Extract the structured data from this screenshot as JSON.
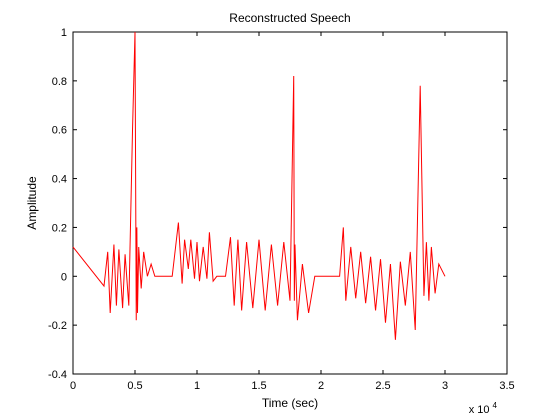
{
  "chart_data": {
    "type": "line",
    "title": "Reconstructed Speech",
    "xlabel": "Time (sec)",
    "ylabel": "Amplitude",
    "xlim": [
      0,
      35000
    ],
    "ylim": [
      -0.4,
      1
    ],
    "x_tick_values": [
      0,
      5000,
      10000,
      15000,
      20000,
      25000,
      30000,
      35000
    ],
    "x_tick_labels": [
      "0",
      "0.5",
      "1",
      "1.5",
      "2",
      "2.5",
      "3",
      "3.5"
    ],
    "x_exponent_label": "x 10",
    "x_exponent_power": "4",
    "y_tick_values": [
      -0.4,
      -0.2,
      0,
      0.2,
      0.4,
      0.6,
      0.8,
      1
    ],
    "y_tick_labels": [
      "-0.4",
      "-0.2",
      "0",
      "0.2",
      "0.4",
      "0.6",
      "0.8",
      "1"
    ],
    "grid": false,
    "line_color": "#ff0000",
    "series": [
      {
        "values_x": [
          0,
          2500,
          2800,
          3000,
          3300,
          3500,
          3700,
          4000,
          4200,
          4500,
          4800,
          5000,
          5100,
          5150,
          5200,
          5300,
          5500,
          5700,
          6000,
          6300,
          6600,
          7000,
          7500,
          8000,
          8500,
          8800,
          9000,
          9300,
          9500,
          9800,
          10000,
          10200,
          10500,
          10800,
          11000,
          11300,
          11600,
          12000,
          12300,
          12700,
          13000,
          13300,
          13600,
          14000,
          14500,
          15000,
          15500,
          16000,
          16500,
          17000,
          17500,
          17800,
          17850,
          17900,
          18100,
          18500,
          19000,
          19500,
          19700,
          20000,
          20500,
          21000,
          21500,
          21800,
          22000,
          22400,
          22800,
          23200,
          23600,
          24000,
          24400,
          24800,
          25200,
          25600,
          26000,
          26400,
          26800,
          27200,
          27600,
          28000,
          28300,
          28500,
          28700,
          28900,
          29200,
          29500,
          30000
        ],
        "values_y": [
          0.12,
          -0.04,
          0.1,
          -0.15,
          0.13,
          -0.12,
          0.11,
          -0.13,
          0.09,
          -0.12,
          0.6,
          1.0,
          -0.18,
          0.2,
          -0.15,
          0.12,
          -0.05,
          0.1,
          0.0,
          0.05,
          0.0,
          0.0,
          0.0,
          0.0,
          0.22,
          -0.03,
          0.15,
          0.03,
          0.15,
          -0.01,
          0.14,
          -0.02,
          0.12,
          -0.01,
          0.18,
          -0.02,
          0.0,
          0.0,
          0.0,
          0.16,
          -0.12,
          0.15,
          -0.14,
          0.14,
          -0.13,
          0.15,
          -0.14,
          0.13,
          -0.12,
          0.14,
          -0.1,
          0.82,
          -0.1,
          0.13,
          -0.18,
          0.05,
          -0.15,
          0.0,
          0.0,
          0.0,
          0.0,
          0.0,
          0.0,
          0.2,
          -0.1,
          0.12,
          -0.09,
          0.1,
          -0.11,
          0.08,
          -0.14,
          0.07,
          -0.19,
          0.05,
          -0.26,
          0.06,
          -0.12,
          0.1,
          -0.22,
          0.78,
          -0.08,
          0.14,
          -0.1,
          0.12,
          -0.07,
          0.05,
          0.0
        ]
      }
    ]
  }
}
